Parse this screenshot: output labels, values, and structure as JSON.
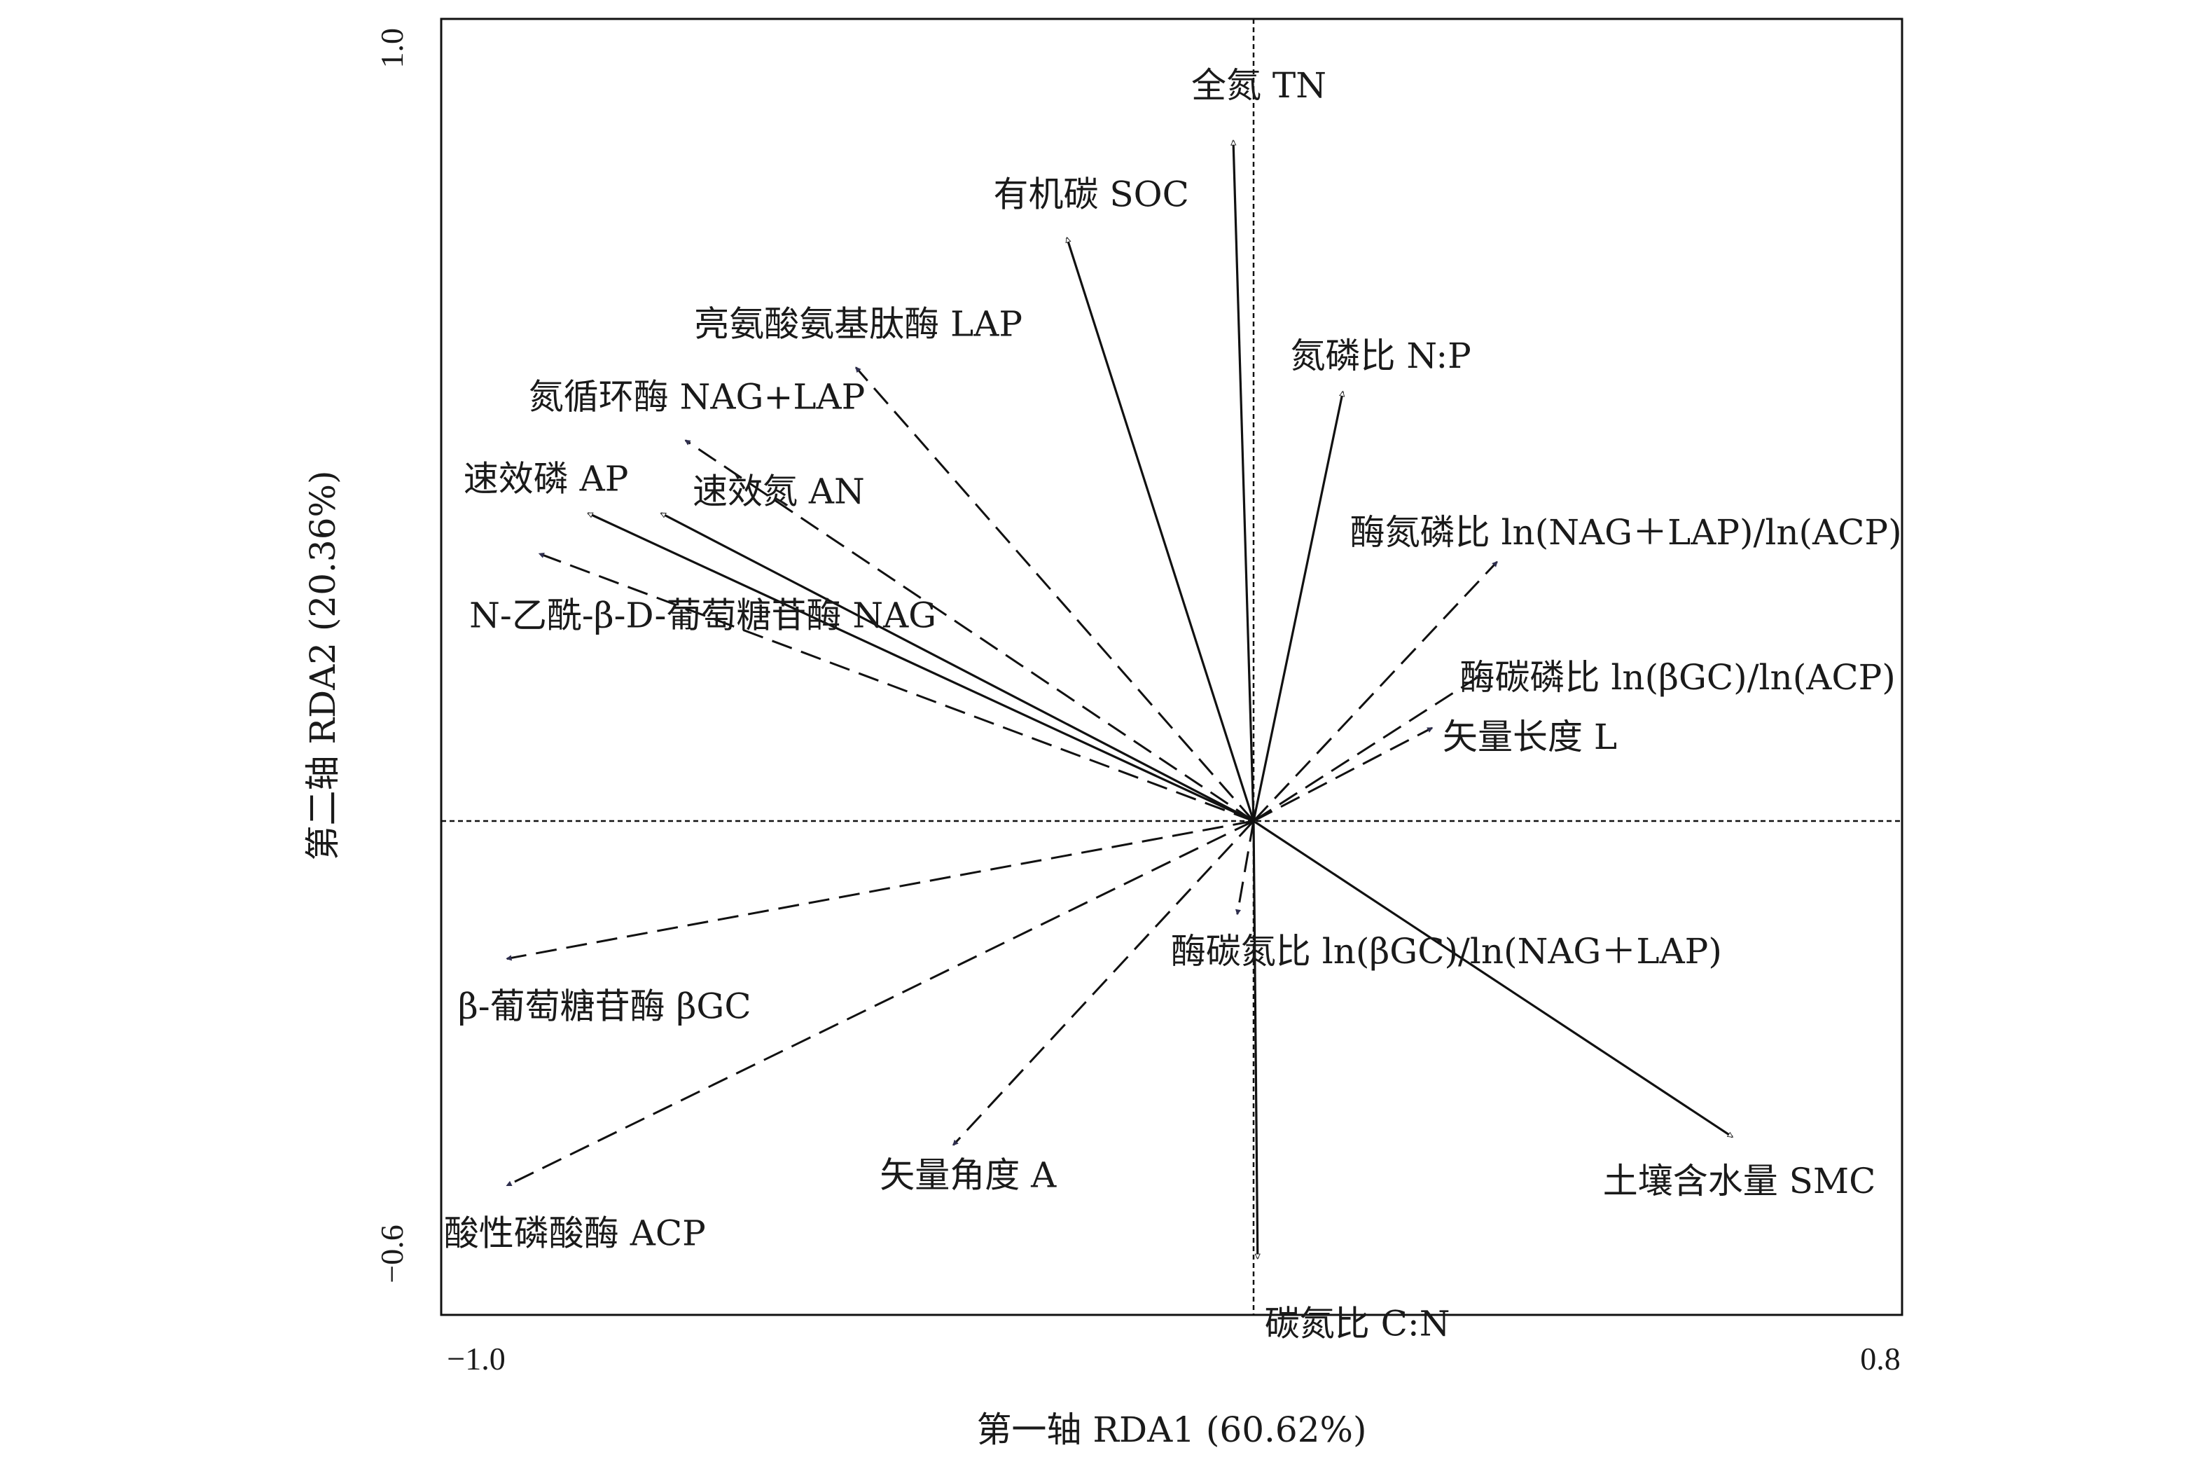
{
  "chart_data": {
    "type": "scatter",
    "subtype": "rda-biplot",
    "xlabel": "第一轴 RDA1 (60.62%)",
    "ylabel": "第二轴 RDA2 (20.36%)",
    "xlim": [
      -1.0,
      0.8
    ],
    "ylim": [
      -0.6,
      1.0
    ],
    "x_tick_labels": [
      "−1.0",
      "0.8"
    ],
    "y_tick_labels": [
      "−0.6",
      "1.0"
    ],
    "reference_lines": "dotted lines at x = 0 and y = 0",
    "arrow_styles": {
      "solid_open_head": "solid line, hollow triangular arrowhead (explanatory variables)",
      "dashed_filled_head": "dashed line, filled dark triangular arrowhead (response variables)"
    },
    "colors": {
      "line": "#111111",
      "filled_head": "#2e2e4e"
    },
    "vectors": [
      {
        "label": "全氮 TN",
        "x": -0.025,
        "y": 0.84,
        "style": "solid_open_head"
      },
      {
        "label": "有机碳 SOC",
        "x": -0.23,
        "y": 0.72,
        "style": "solid_open_head"
      },
      {
        "label": "氮磷比 N:P",
        "x": 0.11,
        "y": 0.53,
        "style": "solid_open_head"
      },
      {
        "label": "速效磷 AP",
        "x": -0.82,
        "y": 0.38,
        "style": "solid_open_head"
      },
      {
        "label": "速效氮 AN",
        "x": -0.73,
        "y": 0.38,
        "style": "solid_open_head"
      },
      {
        "label": "土壤含水量 SMC",
        "x": 0.59,
        "y": -0.39,
        "style": "solid_open_head"
      },
      {
        "label": "碳氮比 C:N",
        "x": 0.005,
        "y": -0.54,
        "style": "solid_open_head"
      },
      {
        "label": "亮氨酸氨基肽酶 LAP",
        "x": -0.49,
        "y": 0.56,
        "style": "dashed_filled_head"
      },
      {
        "label": "氮循环酶 NAG+LAP",
        "x": -0.7,
        "y": 0.47,
        "style": "dashed_filled_head"
      },
      {
        "label": "N-乙酰-β-D-葡萄糖苷酶 NAG",
        "x": -0.88,
        "y": 0.33,
        "style": "dashed_filled_head"
      },
      {
        "label": "酶氮磷比 ln(NAG＋LAP)/ln(ACP)",
        "x": 0.3,
        "y": 0.32,
        "style": "dashed_filled_head"
      },
      {
        "label": "酶碳磷比 ln(βGC)/ln(ACP)",
        "x": 0.28,
        "y": 0.18,
        "style": "dashed_filled_head"
      },
      {
        "label": "矢量长度 L",
        "x": 0.22,
        "y": 0.115,
        "style": "dashed_filled_head"
      },
      {
        "label": "酶碳氮比 ln(βGC)/ln(NAG＋LAP)",
        "x": -0.02,
        "y": -0.115,
        "style": "dashed_filled_head"
      },
      {
        "label": "β-葡萄糖苷酶 βGC",
        "x": -0.92,
        "y": -0.17,
        "style": "dashed_filled_head"
      },
      {
        "label": "酸性磷酸酶 ACP",
        "x": -0.92,
        "y": -0.45,
        "style": "dashed_filled_head"
      },
      {
        "label": "矢量角度 A",
        "x": -0.37,
        "y": -0.4,
        "style": "dashed_filled_head"
      }
    ]
  }
}
